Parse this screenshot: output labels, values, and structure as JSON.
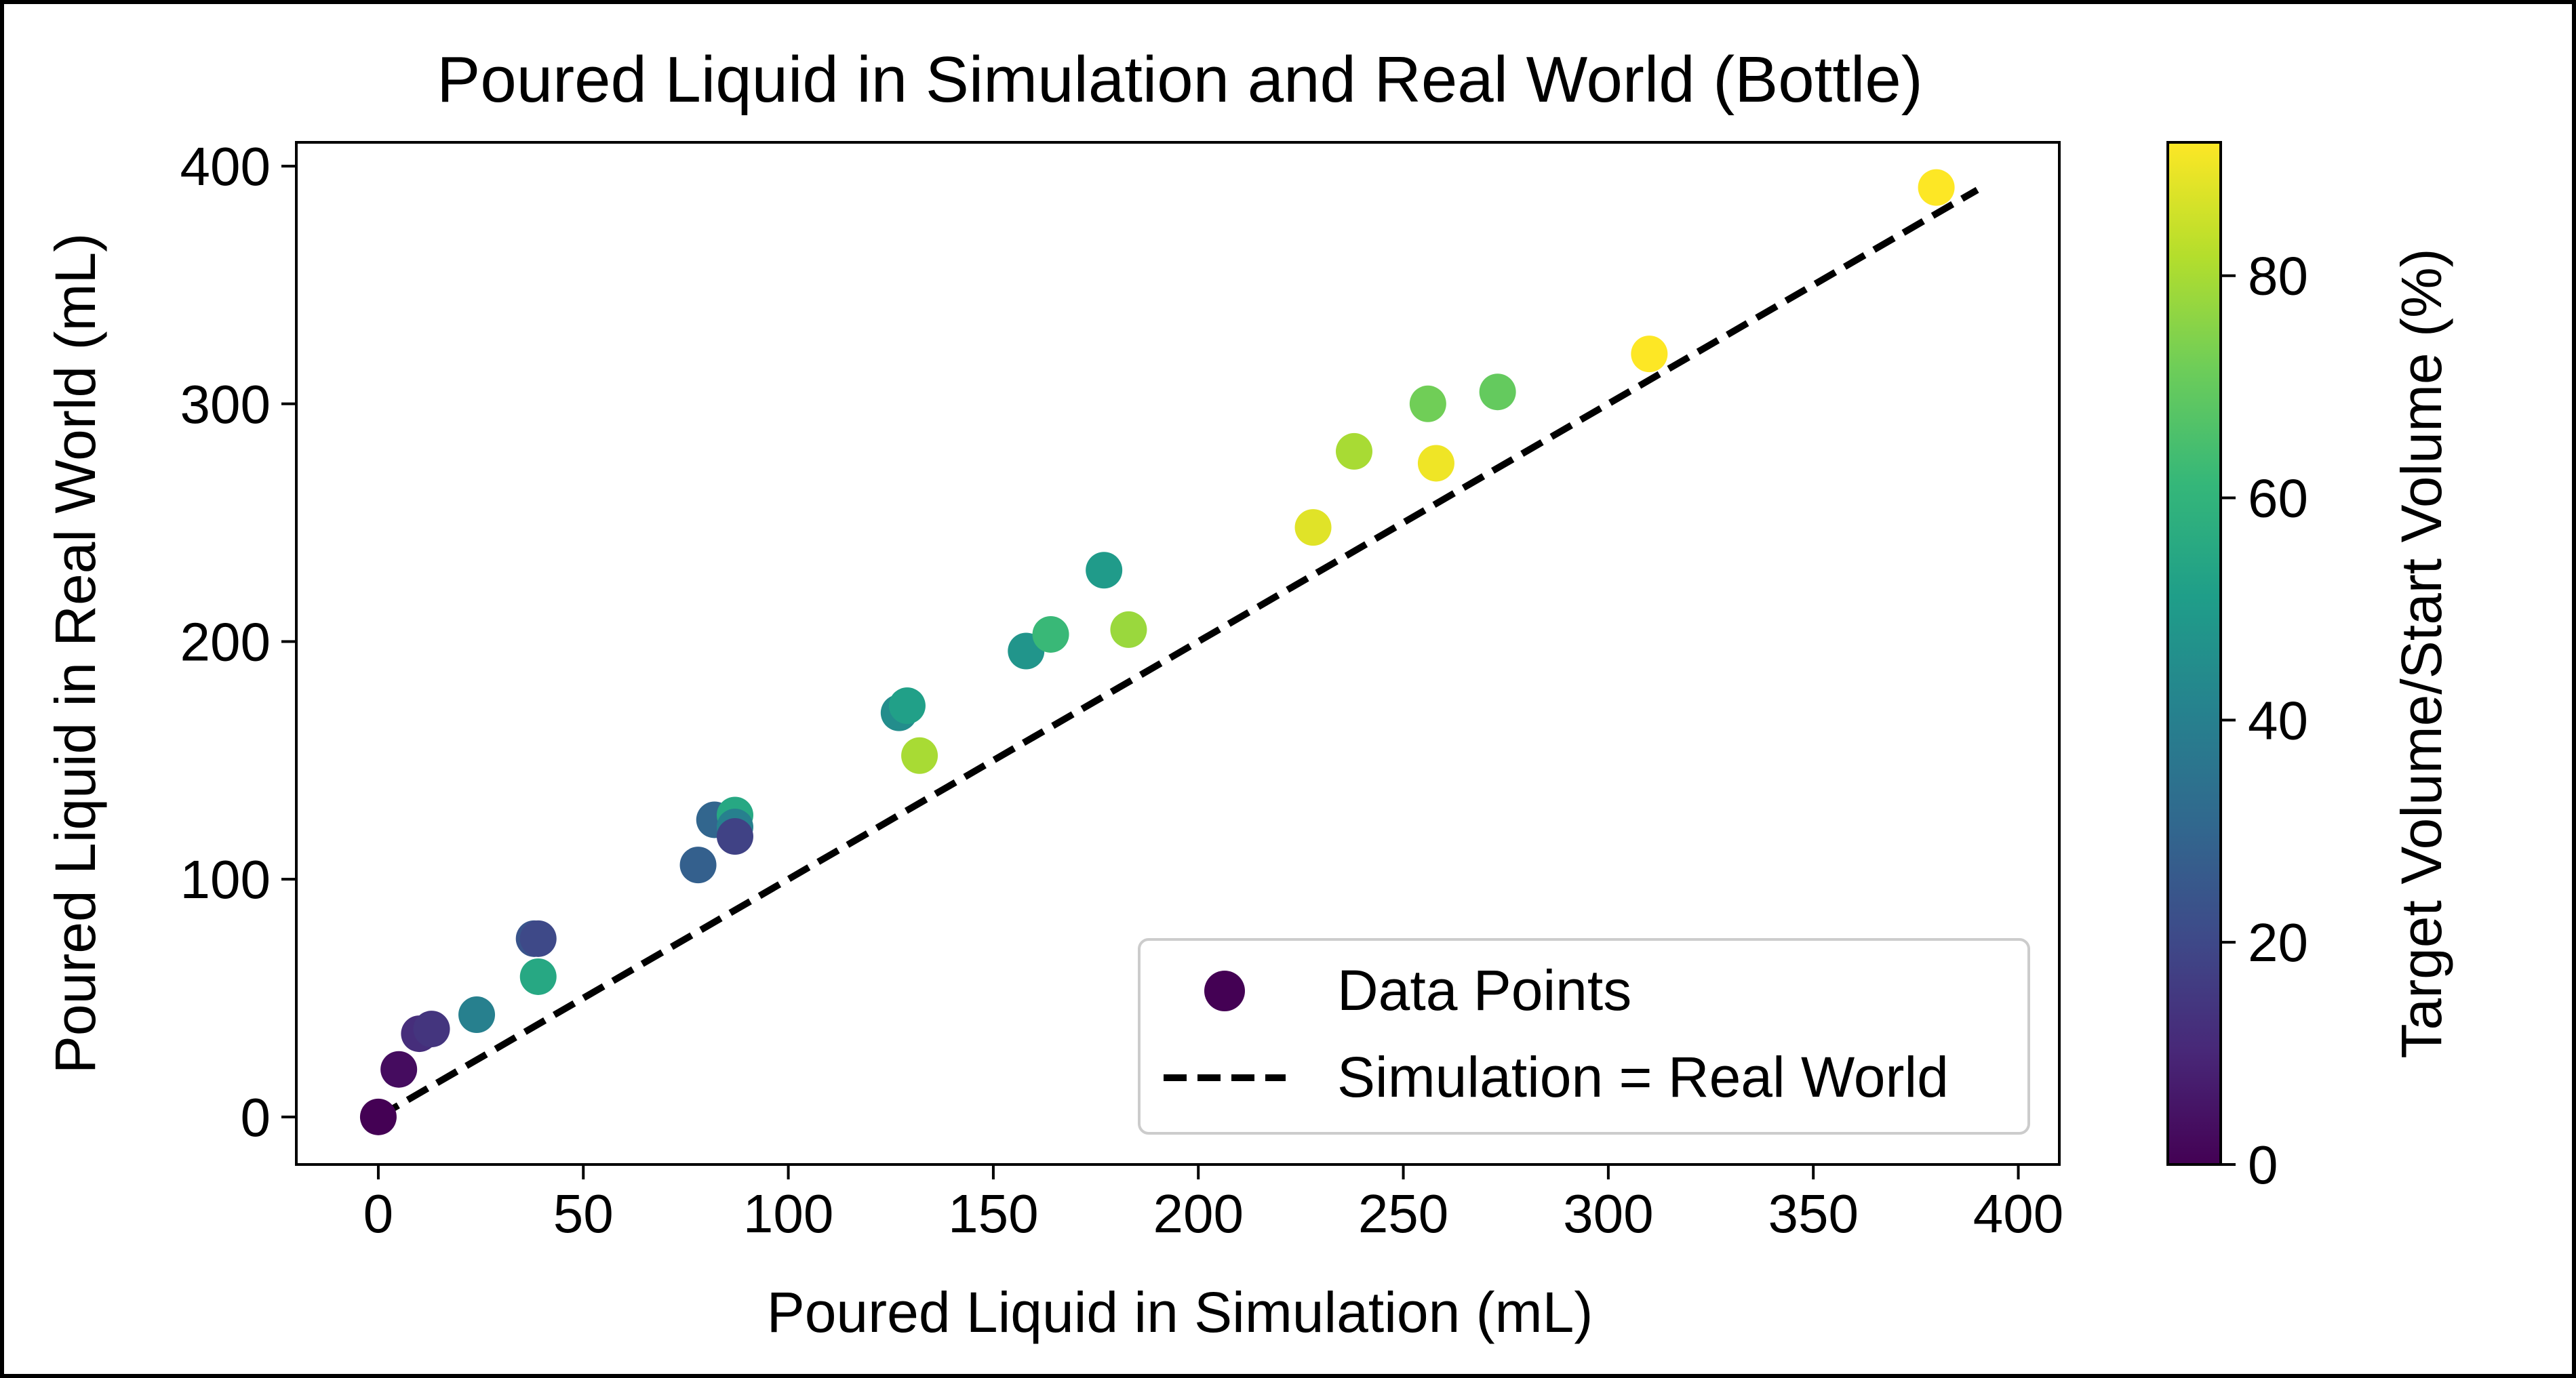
{
  "chart_data": {
    "type": "scatter",
    "title": "Poured Liquid in Simulation and Real World (Bottle)",
    "xlabel": "Poured Liquid in Simulation (mL)",
    "ylabel": "Poured Liquid in Real World (mL)",
    "xlim": [
      -20,
      410
    ],
    "ylim": [
      -20,
      410
    ],
    "xticks": [
      0,
      50,
      100,
      150,
      200,
      250,
      300,
      350,
      400
    ],
    "yticks": [
      0,
      100,
      200,
      300,
      400
    ],
    "grid": false,
    "legend": {
      "placement": "lower-right",
      "entries": [
        "Data Points",
        "Simulation = Real World"
      ]
    },
    "colorbar": {
      "label": "Target Volume/Start Volume (%)",
      "range": [
        0,
        92
      ],
      "ticks": [
        0,
        20,
        40,
        60,
        80
      ],
      "colormap": "viridis"
    },
    "series": [
      {
        "name": "Data Points",
        "kind": "scatter",
        "points": [
          {
            "x": 0,
            "y": 0,
            "c": 0
          },
          {
            "x": 5,
            "y": 20,
            "c": 3
          },
          {
            "x": 10,
            "y": 35,
            "c": 12
          },
          {
            "x": 13,
            "y": 37,
            "c": 14
          },
          {
            "x": 24,
            "y": 43,
            "c": 40
          },
          {
            "x": 38,
            "y": 75,
            "c": 24
          },
          {
            "x": 39,
            "y": 75,
            "c": 20
          },
          {
            "x": 39,
            "y": 59,
            "c": 55
          },
          {
            "x": 78,
            "y": 106,
            "c": 28
          },
          {
            "x": 82,
            "y": 125,
            "c": 30
          },
          {
            "x": 87,
            "y": 127,
            "c": 55
          },
          {
            "x": 87,
            "y": 122,
            "c": 40
          },
          {
            "x": 87,
            "y": 118,
            "c": 18
          },
          {
            "x": 127,
            "y": 170,
            "c": 45
          },
          {
            "x": 129,
            "y": 173,
            "c": 52
          },
          {
            "x": 132,
            "y": 152,
            "c": 80
          },
          {
            "x": 158,
            "y": 196,
            "c": 48
          },
          {
            "x": 164,
            "y": 203,
            "c": 62
          },
          {
            "x": 177,
            "y": 230,
            "c": 50
          },
          {
            "x": 183,
            "y": 205,
            "c": 78
          },
          {
            "x": 228,
            "y": 248,
            "c": 88
          },
          {
            "x": 238,
            "y": 280,
            "c": 80
          },
          {
            "x": 256,
            "y": 300,
            "c": 72
          },
          {
            "x": 258,
            "y": 275,
            "c": 90
          },
          {
            "x": 273,
            "y": 305,
            "c": 70
          },
          {
            "x": 310,
            "y": 321,
            "c": 92
          },
          {
            "x": 380,
            "y": 391,
            "c": 92
          }
        ]
      },
      {
        "name": "Simulation = Real World",
        "kind": "line",
        "x": [
          0,
          390
        ],
        "y": [
          0,
          390
        ],
        "color": "#000000",
        "style": "dashed"
      }
    ]
  }
}
